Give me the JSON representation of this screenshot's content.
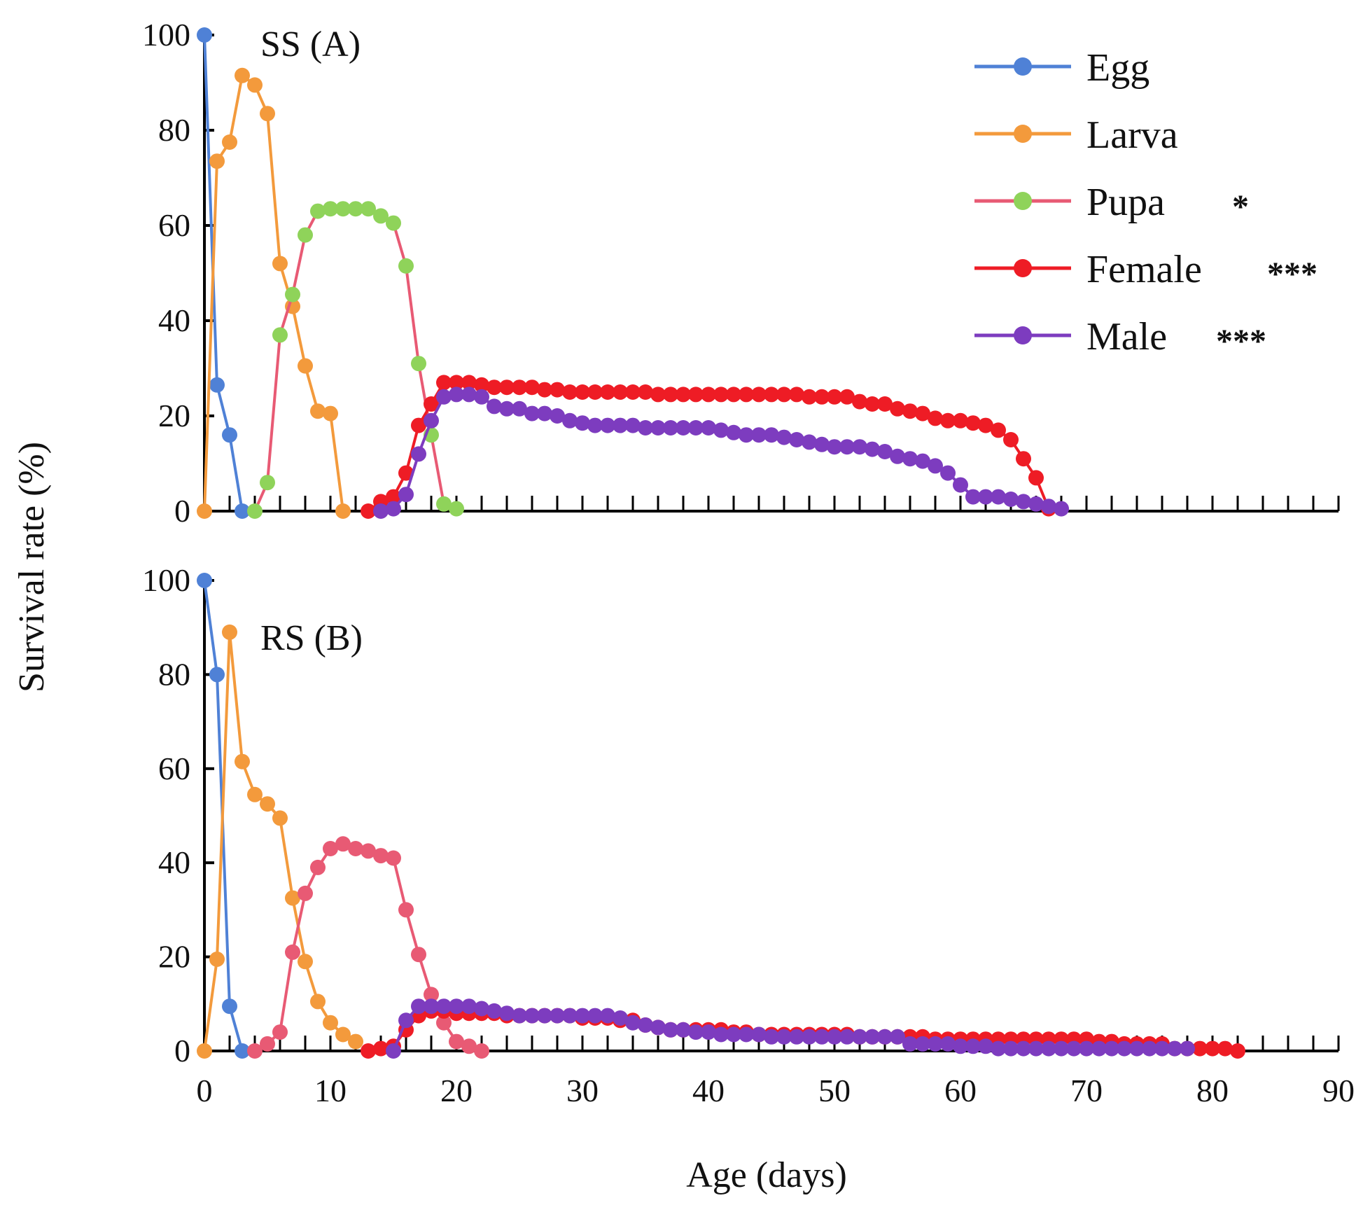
{
  "figure": {
    "ylabel": "Survival rate (%)",
    "xlabel": "Age (days)"
  },
  "legend": [
    {
      "label": "Egg",
      "sig": "",
      "line_color": "#4f81d6",
      "marker_color": "#4f81d6"
    },
    {
      "label": "Larva",
      "sig": "",
      "line_color": "#f39a3c",
      "marker_color": "#f39a3c"
    },
    {
      "label": "Pupa",
      "sig": "*",
      "line_color": "#e85a74",
      "marker_color": "#8fd35a"
    },
    {
      "label": "Female",
      "sig": "***",
      "line_color": "#ee1c25",
      "marker_color": "#ee1c25"
    },
    {
      "label": "Male",
      "sig": "***",
      "line_color": "#7d3cbf",
      "marker_color": "#7d3cbf"
    }
  ],
  "chart_data": [
    {
      "type": "line",
      "title": "SS (A)",
      "xlabel": "Age (days)",
      "ylabel": "Survival rate (%)",
      "xlim": [
        0,
        90
      ],
      "ylim": [
        0,
        100
      ],
      "xticks": [
        0,
        10,
        20,
        30,
        40,
        50,
        60,
        70,
        80,
        90
      ],
      "yticks": [
        0,
        20,
        40,
        60,
        80,
        100
      ],
      "series": [
        {
          "name": "Egg",
          "line_color": "#4f81d6",
          "marker_color": "#4f81d6",
          "x": [
            0,
            1,
            2,
            3
          ],
          "y": [
            100,
            26.5,
            16,
            0
          ]
        },
        {
          "name": "Larva",
          "line_color": "#f39a3c",
          "marker_color": "#f39a3c",
          "x": [
            0,
            1,
            2,
            3,
            4,
            5,
            6,
            7,
            8,
            9,
            10,
            11
          ],
          "y": [
            0,
            73.5,
            77.5,
            91.5,
            89.5,
            83.5,
            52,
            43,
            30.5,
            21,
            20.5,
            0
          ]
        },
        {
          "name": "Pupa",
          "line_color": "#e85a74",
          "marker_color": "#8fd35a",
          "x": [
            4,
            5,
            6,
            7,
            8,
            9,
            10,
            11,
            12,
            13,
            14,
            15,
            16,
            17,
            18,
            19,
            20
          ],
          "y": [
            0,
            6,
            37,
            45.5,
            58,
            63,
            63.5,
            63.5,
            63.5,
            63.5,
            62,
            60.5,
            51.5,
            31,
            16,
            1.5,
            0.5
          ]
        },
        {
          "name": "Female",
          "line_color": "#ee1c25",
          "marker_color": "#ee1c25",
          "x": [
            13,
            14,
            15,
            16,
            17,
            18,
            19,
            20,
            21,
            22,
            23,
            24,
            25,
            26,
            27,
            28,
            29,
            30,
            31,
            32,
            33,
            34,
            35,
            36,
            37,
            38,
            39,
            40,
            41,
            42,
            43,
            44,
            45,
            46,
            47,
            48,
            49,
            50,
            51,
            52,
            53,
            54,
            55,
            56,
            57,
            58,
            59,
            60,
            61,
            62,
            63,
            64,
            65,
            66,
            67
          ],
          "y": [
            0,
            2,
            3,
            8,
            18,
            22.5,
            27,
            27,
            27,
            26.5,
            26,
            26,
            26,
            26,
            25.5,
            25.5,
            25,
            25,
            25,
            25,
            25,
            25,
            25,
            24.5,
            24.5,
            24.5,
            24.5,
            24.5,
            24.5,
            24.5,
            24.5,
            24.5,
            24.5,
            24.5,
            24.5,
            24,
            24,
            24,
            24,
            23,
            22.5,
            22.5,
            21.5,
            21,
            20.5,
            19.5,
            19,
            19,
            18.5,
            18,
            17,
            15,
            11,
            7,
            0.5
          ]
        },
        {
          "name": "Male",
          "line_color": "#7d3cbf",
          "marker_color": "#7d3cbf",
          "x": [
            14,
            15,
            16,
            17,
            18,
            19,
            20,
            21,
            22,
            23,
            24,
            25,
            26,
            27,
            28,
            29,
            30,
            31,
            32,
            33,
            34,
            35,
            36,
            37,
            38,
            39,
            40,
            41,
            42,
            43,
            44,
            45,
            46,
            47,
            48,
            49,
            50,
            51,
            52,
            53,
            54,
            55,
            56,
            57,
            58,
            59,
            60,
            61,
            62,
            63,
            64,
            65,
            66,
            67,
            68
          ],
          "y": [
            0,
            0.5,
            3.5,
            12,
            19,
            24,
            24.5,
            24.5,
            24,
            22,
            21.5,
            21.5,
            20.5,
            20.5,
            20,
            19,
            18.5,
            18,
            18,
            18,
            18,
            17.5,
            17.5,
            17.5,
            17.5,
            17.5,
            17.5,
            17,
            16.5,
            16,
            16,
            16,
            15.5,
            15,
            14.5,
            14,
            13.5,
            13.5,
            13.5,
            13,
            12.5,
            11.5,
            11,
            10.5,
            9.5,
            8,
            5.5,
            3,
            3,
            3,
            2.5,
            2,
            1.5,
            1,
            0.5
          ]
        }
      ]
    },
    {
      "type": "line",
      "title": "RS (B)",
      "xlabel": "Age (days)",
      "ylabel": "Survival rate (%)",
      "xlim": [
        0,
        90
      ],
      "ylim": [
        0,
        100
      ],
      "xticks": [
        0,
        10,
        20,
        30,
        40,
        50,
        60,
        70,
        80,
        90
      ],
      "yticks": [
        0,
        20,
        40,
        60,
        80,
        100
      ],
      "series": [
        {
          "name": "Egg",
          "line_color": "#4f81d6",
          "marker_color": "#4f81d6",
          "x": [
            0,
            1,
            2,
            3
          ],
          "y": [
            100,
            80,
            9.5,
            0
          ]
        },
        {
          "name": "Larva",
          "line_color": "#f39a3c",
          "marker_color": "#f39a3c",
          "x": [
            0,
            1,
            2,
            3,
            4,
            5,
            6,
            7,
            8,
            9,
            10,
            11,
            12
          ],
          "y": [
            0,
            19.5,
            89,
            61.5,
            54.5,
            52.5,
            49.5,
            32.5,
            19,
            10.5,
            6,
            3.5,
            2
          ]
        },
        {
          "name": "Pupa",
          "line_color": "#e85a74",
          "marker_color": "#e85a74",
          "x": [
            4,
            5,
            6,
            7,
            8,
            9,
            10,
            11,
            12,
            13,
            14,
            15,
            16,
            17,
            18,
            19,
            20,
            21,
            22
          ],
          "y": [
            0,
            1.5,
            4,
            21,
            33.5,
            39,
            43,
            44,
            43,
            42.5,
            41.5,
            41,
            30,
            20.5,
            12,
            6,
            2,
            1,
            0
          ]
        },
        {
          "name": "Female",
          "line_color": "#ee1c25",
          "marker_color": "#ee1c25",
          "x": [
            13,
            14,
            15,
            16,
            17,
            18,
            19,
            20,
            21,
            22,
            23,
            24,
            25,
            26,
            27,
            28,
            29,
            30,
            31,
            32,
            33,
            34,
            35,
            36,
            37,
            38,
            39,
            40,
            41,
            42,
            43,
            44,
            45,
            46,
            47,
            48,
            49,
            50,
            51,
            52,
            53,
            54,
            55,
            56,
            57,
            58,
            59,
            60,
            61,
            62,
            63,
            64,
            65,
            66,
            67,
            68,
            69,
            70,
            71,
            72,
            73,
            74,
            75,
            76,
            77,
            78,
            79,
            80,
            81,
            82
          ],
          "y": [
            0,
            0.5,
            1,
            4.5,
            7.5,
            8.5,
            8.5,
            8,
            8,
            8,
            8,
            7.5,
            7.5,
            7.5,
            7.5,
            7.5,
            7.5,
            7,
            7,
            7,
            6.5,
            6.5,
            5.5,
            5,
            4.5,
            4.5,
            4.5,
            4.5,
            4.5,
            4,
            4,
            3.5,
            3.5,
            3.5,
            3.5,
            3.5,
            3.5,
            3.5,
            3.5,
            3,
            3,
            3,
            3,
            3,
            3,
            2.5,
            2.5,
            2.5,
            2.5,
            2.5,
            2.5,
            2.5,
            2.5,
            2.5,
            2.5,
            2.5,
            2.5,
            2.5,
            2,
            2,
            1.5,
            1.5,
            1.5,
            1.5,
            0.5,
            0.5,
            0.5,
            0.5,
            0.5,
            0
          ]
        },
        {
          "name": "Male",
          "line_color": "#7d3cbf",
          "marker_color": "#7d3cbf",
          "x": [
            15,
            16,
            17,
            18,
            19,
            20,
            21,
            22,
            23,
            24,
            25,
            26,
            27,
            28,
            29,
            30,
            31,
            32,
            33,
            34,
            35,
            36,
            37,
            38,
            39,
            40,
            41,
            42,
            43,
            44,
            45,
            46,
            47,
            48,
            49,
            50,
            51,
            52,
            53,
            54,
            55,
            56,
            57,
            58,
            59,
            60,
            61,
            62,
            63,
            64,
            65,
            66,
            67,
            68,
            69,
            70,
            71,
            72,
            73,
            74,
            75,
            76,
            77,
            78
          ],
          "y": [
            0,
            6.5,
            9.5,
            9.5,
            9.5,
            9.5,
            9.5,
            9,
            8.5,
            8,
            7.5,
            7.5,
            7.5,
            7.5,
            7.5,
            7.5,
            7.5,
            7.5,
            7,
            6,
            5.5,
            5,
            4.5,
            4.5,
            4,
            4,
            3.5,
            3.5,
            3.5,
            3.5,
            3,
            3,
            3,
            3,
            3,
            3,
            3,
            3,
            3,
            3,
            3,
            1.5,
            1.5,
            1.5,
            1.5,
            1,
            1,
            1,
            0.5,
            0.5,
            0.5,
            0.5,
            0.5,
            0.5,
            0.5,
            0.5,
            0.5,
            0.5,
            0.5,
            0.5,
            0.5,
            0.5,
            0.5,
            0.5
          ]
        }
      ]
    }
  ]
}
